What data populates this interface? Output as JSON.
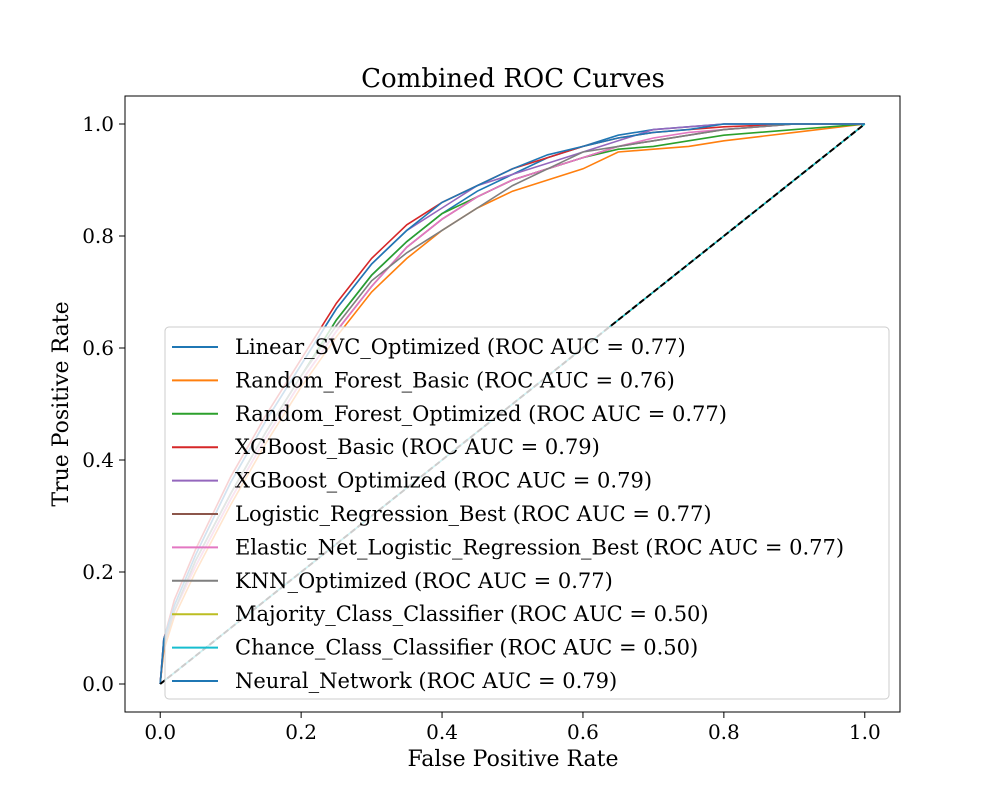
{
  "chart_data": {
    "type": "line",
    "title": "Combined ROC Curves",
    "xlabel": "False Positive Rate",
    "ylabel": "True Positive Rate",
    "xlim": [
      -0.05,
      1.05
    ],
    "ylim": [
      -0.05,
      1.05
    ],
    "xticks": [
      "0.0",
      "0.2",
      "0.4",
      "0.6",
      "0.8",
      "1.0"
    ],
    "yticks": [
      "0.0",
      "0.2",
      "0.4",
      "0.6",
      "0.8",
      "1.0"
    ],
    "grid": false,
    "legend_position": "lower-right",
    "series": [
      {
        "name": "Linear_SVC_Optimized (ROC AUC = 0.77)",
        "color": "#1f77b4",
        "x": [
          0.0,
          0.005,
          0.02,
          0.05,
          0.1,
          0.15,
          0.2,
          0.25,
          0.3,
          0.35,
          0.4,
          0.45,
          0.5,
          0.55,
          0.6,
          0.65,
          0.7,
          0.75,
          0.8,
          0.85,
          0.9,
          1.0
        ],
        "y": [
          0.0,
          0.07,
          0.13,
          0.22,
          0.34,
          0.45,
          0.55,
          0.65,
          0.73,
          0.79,
          0.84,
          0.88,
          0.91,
          0.94,
          0.96,
          0.98,
          0.99,
          0.995,
          1.0,
          1.0,
          1.0,
          1.0
        ]
      },
      {
        "name": "Random_Forest_Basic (ROC AUC = 0.76)",
        "color": "#ff7f0e",
        "x": [
          0.0,
          0.005,
          0.02,
          0.05,
          0.1,
          0.15,
          0.2,
          0.25,
          0.3,
          0.35,
          0.4,
          0.45,
          0.5,
          0.55,
          0.6,
          0.65,
          0.7,
          0.75,
          0.8,
          0.9,
          1.0
        ],
        "y": [
          0.0,
          0.06,
          0.12,
          0.2,
          0.32,
          0.43,
          0.53,
          0.62,
          0.7,
          0.76,
          0.81,
          0.85,
          0.88,
          0.9,
          0.92,
          0.95,
          0.955,
          0.96,
          0.97,
          0.985,
          1.0
        ]
      },
      {
        "name": "Random_Forest_Optimized (ROC AUC = 0.77)",
        "color": "#2ca02c",
        "x": [
          0.0,
          0.005,
          0.02,
          0.05,
          0.1,
          0.15,
          0.2,
          0.25,
          0.3,
          0.35,
          0.4,
          0.45,
          0.5,
          0.55,
          0.6,
          0.65,
          0.7,
          0.75,
          0.8,
          0.9,
          1.0
        ],
        "y": [
          0.0,
          0.07,
          0.13,
          0.22,
          0.34,
          0.45,
          0.55,
          0.65,
          0.73,
          0.79,
          0.84,
          0.87,
          0.9,
          0.92,
          0.94,
          0.955,
          0.96,
          0.97,
          0.98,
          0.99,
          1.0
        ]
      },
      {
        "name": "XGBoost_Basic (ROC AUC = 0.79)",
        "color": "#d62728",
        "x": [
          0.0,
          0.005,
          0.02,
          0.05,
          0.1,
          0.15,
          0.2,
          0.25,
          0.3,
          0.35,
          0.4,
          0.45,
          0.5,
          0.55,
          0.6,
          0.65,
          0.7,
          0.75,
          0.8,
          0.9,
          1.0
        ],
        "y": [
          0.0,
          0.08,
          0.15,
          0.24,
          0.37,
          0.48,
          0.58,
          0.68,
          0.76,
          0.82,
          0.86,
          0.89,
          0.92,
          0.94,
          0.96,
          0.975,
          0.985,
          0.99,
          0.995,
          1.0,
          1.0
        ]
      },
      {
        "name": "XGBoost_Optimized (ROC AUC = 0.79)",
        "color": "#9467bd",
        "x": [
          0.0,
          0.005,
          0.02,
          0.05,
          0.1,
          0.15,
          0.2,
          0.25,
          0.3,
          0.35,
          0.4,
          0.45,
          0.5,
          0.55,
          0.6,
          0.65,
          0.7,
          0.75,
          0.8,
          0.9,
          1.0
        ],
        "y": [
          0.0,
          0.08,
          0.14,
          0.23,
          0.36,
          0.47,
          0.57,
          0.67,
          0.75,
          0.81,
          0.85,
          0.89,
          0.91,
          0.93,
          0.95,
          0.97,
          0.99,
          0.995,
          1.0,
          1.0,
          1.0
        ]
      },
      {
        "name": "Logistic_Regression_Best (ROC AUC = 0.77)",
        "color": "#8c564b",
        "x": [
          0.0,
          0.005,
          0.02,
          0.05,
          0.1,
          0.15,
          0.2,
          0.25,
          0.3,
          0.35,
          0.4,
          0.45,
          0.5,
          0.55,
          0.6,
          0.65,
          0.7,
          0.75,
          0.8,
          0.9,
          1.0
        ],
        "y": [
          0.0,
          0.07,
          0.13,
          0.21,
          0.33,
          0.44,
          0.54,
          0.63,
          0.71,
          0.78,
          0.83,
          0.87,
          0.9,
          0.92,
          0.94,
          0.96,
          0.97,
          0.98,
          0.99,
          1.0,
          1.0
        ]
      },
      {
        "name": "Elastic_Net_Logistic_Regression_Best (ROC AUC = 0.77)",
        "color": "#e377c2",
        "x": [
          0.0,
          0.005,
          0.02,
          0.05,
          0.1,
          0.15,
          0.2,
          0.25,
          0.3,
          0.35,
          0.4,
          0.45,
          0.5,
          0.55,
          0.6,
          0.65,
          0.7,
          0.75,
          0.8,
          0.9,
          1.0
        ],
        "y": [
          0.0,
          0.07,
          0.13,
          0.21,
          0.33,
          0.44,
          0.54,
          0.63,
          0.71,
          0.78,
          0.83,
          0.87,
          0.9,
          0.92,
          0.94,
          0.96,
          0.975,
          0.985,
          0.99,
          1.0,
          1.0
        ]
      },
      {
        "name": "KNN_Optimized (ROC AUC = 0.77)",
        "color": "#7f7f7f",
        "x": [
          0.0,
          0.005,
          0.02,
          0.05,
          0.1,
          0.15,
          0.2,
          0.25,
          0.3,
          0.35,
          0.4,
          0.45,
          0.5,
          0.55,
          0.6,
          0.65,
          0.7,
          0.75,
          0.8,
          0.9,
          1.0
        ],
        "y": [
          0.0,
          0.07,
          0.13,
          0.22,
          0.34,
          0.45,
          0.55,
          0.64,
          0.72,
          0.77,
          0.81,
          0.85,
          0.89,
          0.92,
          0.95,
          0.96,
          0.97,
          0.98,
          0.99,
          1.0,
          1.0
        ]
      },
      {
        "name": "Majority_Class_Classifier (ROC AUC = 0.50)",
        "color": "#bcbd22",
        "x": [
          0.0,
          1.0
        ],
        "y": [
          0.0,
          1.0
        ]
      },
      {
        "name": "Chance_Class_Classifier (ROC AUC = 0.50)",
        "color": "#17becf",
        "x": [
          0.0,
          1.0
        ],
        "y": [
          0.0,
          1.0
        ]
      },
      {
        "name": "Neural_Network (ROC AUC = 0.79)",
        "color": "#1f77b4",
        "x": [
          0.0,
          0.005,
          0.02,
          0.05,
          0.1,
          0.15,
          0.2,
          0.25,
          0.3,
          0.35,
          0.4,
          0.45,
          0.5,
          0.55,
          0.6,
          0.65,
          0.7,
          0.75,
          0.8,
          0.9,
          1.0
        ],
        "y": [
          0.0,
          0.08,
          0.14,
          0.23,
          0.36,
          0.47,
          0.57,
          0.67,
          0.75,
          0.81,
          0.86,
          0.89,
          0.92,
          0.945,
          0.96,
          0.975,
          0.985,
          0.99,
          1.0,
          1.0,
          1.0
        ]
      }
    ],
    "reference_line": {
      "x": [
        0.0,
        1.0
      ],
      "y": [
        0.0,
        1.0
      ],
      "color": "#000000",
      "style": "dashed"
    }
  }
}
